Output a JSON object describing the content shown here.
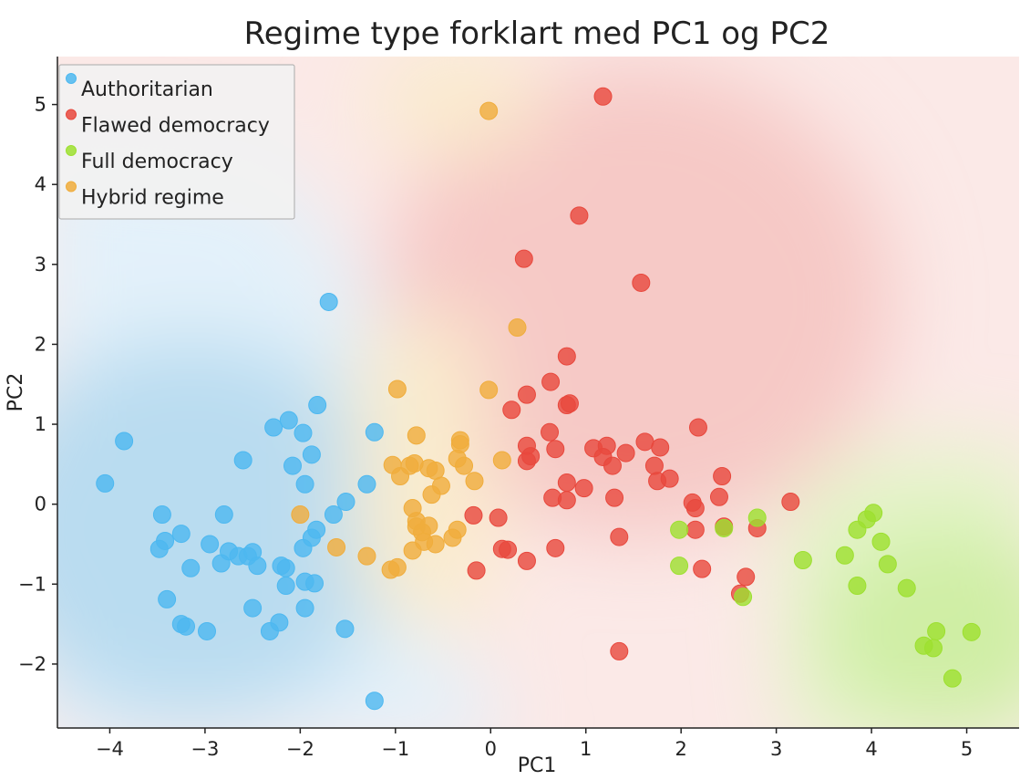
{
  "chart_data": {
    "type": "scatter",
    "title": "Regime type forklart med PC1 og PC2",
    "xlabel": "PC1",
    "ylabel": "PC2",
    "xlim": [
      -4.55,
      5.55
    ],
    "ylim": [
      -2.8,
      5.6
    ],
    "xticks": [
      -4,
      -3,
      -2,
      -1,
      0,
      1,
      2,
      3,
      4,
      5
    ],
    "yticks": [
      -2,
      -1,
      0,
      1,
      2,
      3,
      4,
      5
    ],
    "grid": false,
    "legend_position": "top-left",
    "background": "decision regions per class",
    "series": [
      {
        "name": "Authoritarian",
        "color": "#4db8f0",
        "points": [
          [
            -4.05,
            0.26
          ],
          [
            -3.85,
            0.79
          ],
          [
            -3.45,
            -0.13
          ],
          [
            -3.42,
            -0.46
          ],
          [
            -3.48,
            -0.56
          ],
          [
            -3.25,
            -0.37
          ],
          [
            -3.4,
            -1.19
          ],
          [
            -3.25,
            -1.5
          ],
          [
            -3.2,
            -1.53
          ],
          [
            -3.15,
            -0.8
          ],
          [
            -2.98,
            -1.59
          ],
          [
            -2.95,
            -0.5
          ],
          [
            -2.83,
            -0.74
          ],
          [
            -2.8,
            -0.13
          ],
          [
            -2.75,
            -0.59
          ],
          [
            -2.65,
            -0.65
          ],
          [
            -2.6,
            0.55
          ],
          [
            -2.55,
            -0.65
          ],
          [
            -2.5,
            -0.6
          ],
          [
            -2.5,
            -1.3
          ],
          [
            -2.45,
            -0.77
          ],
          [
            -2.32,
            -1.59
          ],
          [
            -2.28,
            0.96
          ],
          [
            -2.2,
            -0.77
          ],
          [
            -2.22,
            -1.48
          ],
          [
            -2.15,
            -0.8
          ],
          [
            -2.15,
            -1.02
          ],
          [
            -2.12,
            1.05
          ],
          [
            -2.08,
            0.48
          ],
          [
            -1.97,
            0.89
          ],
          [
            -1.97,
            -0.55
          ],
          [
            -1.95,
            -0.97
          ],
          [
            -1.95,
            0.25
          ],
          [
            -1.95,
            -1.3
          ],
          [
            -1.88,
            0.62
          ],
          [
            -1.88,
            -0.42
          ],
          [
            -1.85,
            -0.99
          ],
          [
            -1.83,
            -0.32
          ],
          [
            -1.82,
            1.24
          ],
          [
            -1.7,
            2.53
          ],
          [
            -1.65,
            -0.13
          ],
          [
            -1.52,
            0.03
          ],
          [
            -1.53,
            -1.56
          ],
          [
            -1.3,
            0.25
          ],
          [
            -1.22,
            0.9
          ],
          [
            -1.22,
            -2.46
          ]
        ]
      },
      {
        "name": "Flawed democracy",
        "color": "#e8483d",
        "points": [
          [
            1.18,
            5.1
          ],
          [
            0.93,
            3.61
          ],
          [
            0.35,
            3.07
          ],
          [
            1.58,
            2.77
          ],
          [
            0.8,
            1.85
          ],
          [
            0.38,
            1.37
          ],
          [
            0.63,
            1.53
          ],
          [
            0.8,
            1.24
          ],
          [
            0.83,
            1.26
          ],
          [
            0.22,
            1.18
          ],
          [
            2.18,
            0.96
          ],
          [
            0.62,
            0.9
          ],
          [
            0.38,
            0.73
          ],
          [
            0.38,
            0.54
          ],
          [
            0.42,
            0.6
          ],
          [
            0.68,
            0.69
          ],
          [
            1.08,
            0.7
          ],
          [
            1.22,
            0.73
          ],
          [
            1.18,
            0.59
          ],
          [
            1.28,
            0.48
          ],
          [
            1.42,
            0.64
          ],
          [
            1.62,
            0.78
          ],
          [
            1.72,
            0.48
          ],
          [
            1.78,
            0.71
          ],
          [
            1.75,
            0.29
          ],
          [
            1.88,
            0.32
          ],
          [
            2.43,
            0.35
          ],
          [
            0.8,
            0.27
          ],
          [
            0.98,
            0.2
          ],
          [
            0.65,
            0.08
          ],
          [
            0.8,
            0.05
          ],
          [
            1.3,
            0.08
          ],
          [
            2.12,
            0.02
          ],
          [
            2.15,
            -0.05
          ],
          [
            2.4,
            0.09
          ],
          [
            3.15,
            0.03
          ],
          [
            -0.18,
            -0.14
          ],
          [
            0.08,
            -0.17
          ],
          [
            0.18,
            -0.57
          ],
          [
            0.38,
            -0.71
          ],
          [
            0.68,
            -0.55
          ],
          [
            2.15,
            -0.32
          ],
          [
            2.45,
            -0.28
          ],
          [
            2.8,
            -0.3
          ],
          [
            1.35,
            -0.41
          ],
          [
            2.22,
            -0.81
          ],
          [
            2.68,
            -0.91
          ],
          [
            2.62,
            -1.12
          ],
          [
            1.35,
            -1.84
          ],
          [
            -0.15,
            -0.83
          ],
          [
            0.12,
            -0.56
          ]
        ]
      },
      {
        "name": "Full democracy",
        "color": "#9de030",
        "points": [
          [
            1.98,
            -0.32
          ],
          [
            1.98,
            -0.77
          ],
          [
            2.45,
            -0.3
          ],
          [
            2.8,
            -0.17
          ],
          [
            2.65,
            -1.16
          ],
          [
            3.28,
            -0.7
          ],
          [
            3.72,
            -0.64
          ],
          [
            3.85,
            -0.32
          ],
          [
            3.95,
            -0.19
          ],
          [
            4.02,
            -0.11
          ],
          [
            4.1,
            -0.47
          ],
          [
            4.17,
            -0.75
          ],
          [
            3.85,
            -1.02
          ],
          [
            4.37,
            -1.05
          ],
          [
            4.55,
            -1.77
          ],
          [
            4.65,
            -1.8
          ],
          [
            4.68,
            -1.59
          ],
          [
            5.05,
            -1.6
          ],
          [
            4.85,
            -2.18
          ]
        ]
      },
      {
        "name": "Hybrid regime",
        "color": "#f0ad3c",
        "points": [
          [
            -0.02,
            4.92
          ],
          [
            0.28,
            2.21
          ],
          [
            -0.98,
            1.44
          ],
          [
            -0.02,
            1.43
          ],
          [
            -0.78,
            0.86
          ],
          [
            -0.32,
            0.8
          ],
          [
            -0.32,
            0.75
          ],
          [
            -1.03,
            0.49
          ],
          [
            -0.95,
            0.35
          ],
          [
            -0.85,
            0.48
          ],
          [
            -0.8,
            0.51
          ],
          [
            -0.65,
            0.45
          ],
          [
            -0.58,
            0.42
          ],
          [
            -0.35,
            0.57
          ],
          [
            -0.28,
            0.48
          ],
          [
            -0.52,
            0.23
          ],
          [
            -0.62,
            0.12
          ],
          [
            -0.17,
            0.29
          ],
          [
            0.12,
            0.55
          ],
          [
            -0.82,
            -0.05
          ],
          [
            -0.78,
            -0.21
          ],
          [
            -0.78,
            -0.28
          ],
          [
            -0.72,
            -0.35
          ],
          [
            -0.65,
            -0.27
          ],
          [
            -0.7,
            -0.47
          ],
          [
            -0.58,
            -0.5
          ],
          [
            -0.82,
            -0.58
          ],
          [
            -1.05,
            -0.82
          ],
          [
            -0.98,
            -0.79
          ],
          [
            -1.3,
            -0.65
          ],
          [
            -0.4,
            -0.42
          ],
          [
            -0.35,
            -0.32
          ],
          [
            -1.62,
            -0.54
          ],
          [
            -2.0,
            -0.13
          ]
        ]
      }
    ]
  }
}
